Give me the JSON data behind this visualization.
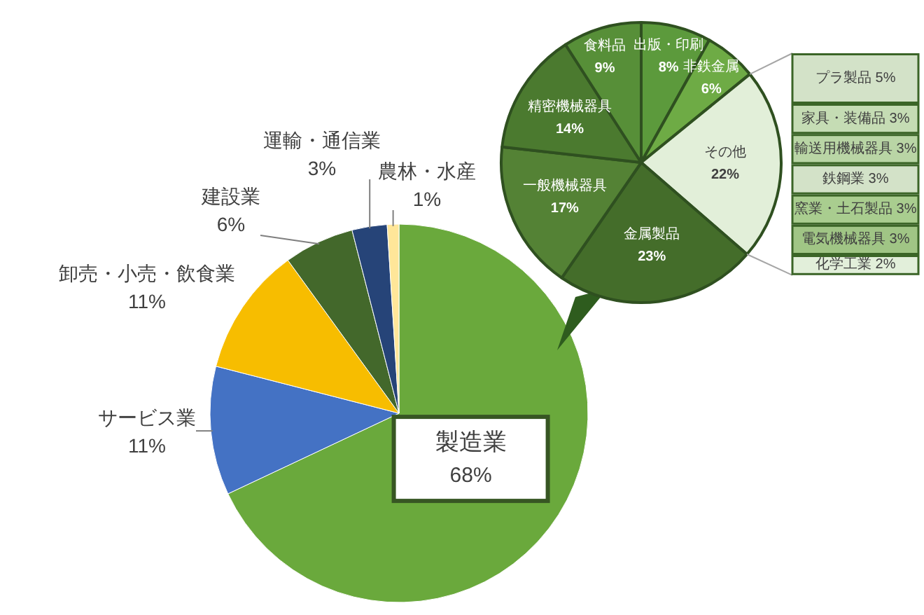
{
  "chart_data": [
    {
      "type": "pie",
      "categories": [
        "製造業",
        "サービス業",
        "卸売・小売・飲食業",
        "建設業",
        "運輸・通信業",
        "農林・水産"
      ],
      "values": [
        68,
        11,
        11,
        6,
        3,
        1
      ],
      "value_labels": [
        "68%",
        "11%",
        "11%",
        "6%",
        "3%",
        "1%"
      ],
      "colors": [
        "#6aa93c",
        "#4472c4",
        "#f7bd00",
        "#43682b",
        "#264478",
        "#ffe699"
      ]
    },
    {
      "type": "pie",
      "categories": [
        "出版・印刷",
        "非鉄金属",
        "その他",
        "金属製品",
        "一般機械器具",
        "精密機械器具",
        "食料品"
      ],
      "values": [
        8,
        6,
        22,
        23,
        17,
        14,
        9
      ],
      "value_labels": [
        "8%",
        "6%",
        "22%",
        "23%",
        "17%",
        "14%",
        "9%"
      ],
      "colors": [
        "#5c9a3c",
        "#6eab45",
        "#e2efd9",
        "#446d2a",
        "#548235",
        "#4b7a2f",
        "#578f38"
      ]
    },
    {
      "type": "other",
      "categories": [
        "プラ製品",
        "家具・装備品",
        "輸送用機械器具",
        "鉄鋼業",
        "窯業・土石製品",
        "電気機械器具",
        "化学工業"
      ],
      "values": [
        5,
        3,
        3,
        3,
        3,
        3,
        2
      ],
      "value_labels": [
        "5%",
        "3%",
        "3%",
        "3%",
        "3%",
        "3%",
        "2%"
      ],
      "colors": [
        "#d3e2c8",
        "#c5dcb4",
        "#b9d5a5",
        "#d3e2c8",
        "#a9cd8f",
        "#a0c585",
        "#e2efda"
      ]
    }
  ]
}
